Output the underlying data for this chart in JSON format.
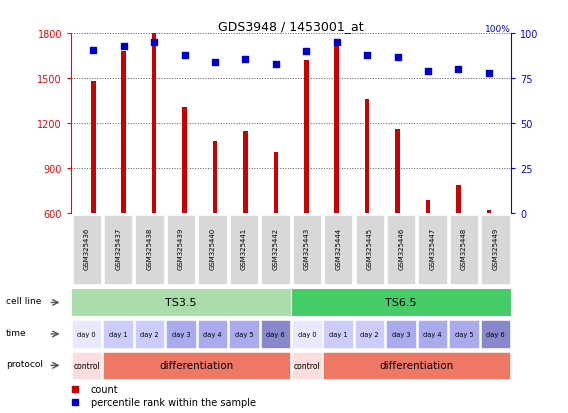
{
  "title": "GDS3948 / 1453001_at",
  "samples": [
    "GSM325436",
    "GSM325437",
    "GSM325438",
    "GSM325439",
    "GSM325440",
    "GSM325441",
    "GSM325442",
    "GSM325443",
    "GSM325444",
    "GSM325445",
    "GSM325446",
    "GSM325447",
    "GSM325448",
    "GSM325449"
  ],
  "counts": [
    1480,
    1680,
    1800,
    1310,
    1080,
    1150,
    1010,
    1620,
    1720,
    1360,
    1160,
    690,
    790,
    620
  ],
  "percentiles": [
    91,
    93,
    95,
    88,
    84,
    86,
    83,
    90,
    95,
    88,
    87,
    79,
    80,
    78
  ],
  "ylim_left": [
    600,
    1800
  ],
  "ylim_right": [
    0,
    100
  ],
  "yticks_left": [
    600,
    900,
    1200,
    1500,
    1800
  ],
  "yticks_right": [
    0,
    25,
    50,
    75,
    100
  ],
  "bar_color": "#cc0000",
  "dot_color": "#0000cc",
  "cell_line_ts35_color": "#aaddaa",
  "cell_line_ts65_color": "#44cc66",
  "cell_line_ts35_label": "TS3.5",
  "cell_line_ts65_label": "TS6.5",
  "time_colors": [
    "#e8e8ff",
    "#ccccff",
    "#ccccff",
    "#aaaaee",
    "#aaaaee",
    "#aaaaee",
    "#8888cc",
    "#e8e8ff",
    "#ccccff",
    "#ccccff",
    "#aaaaee",
    "#aaaaee",
    "#aaaaee",
    "#8888cc"
  ],
  "time_labels": [
    "day 0",
    "day 1",
    "day 2",
    "day 3",
    "day 4",
    "day 5",
    "day 6",
    "day 0",
    "day 1",
    "day 2",
    "day 3",
    "day 4",
    "day 5",
    "day 6"
  ],
  "protocol_labels": [
    "control",
    "differentiation",
    "differentiation",
    "differentiation",
    "differentiation",
    "differentiation",
    "differentiation",
    "control",
    "differentiation",
    "differentiation",
    "differentiation",
    "differentiation",
    "differentiation",
    "differentiation"
  ],
  "protocol_control_color": "#ffdddd",
  "protocol_diff_color": "#ee7766",
  "bg_color": "#ffffff",
  "grid_color": "#555555",
  "bar_width": 0.15,
  "dot_size": 20
}
